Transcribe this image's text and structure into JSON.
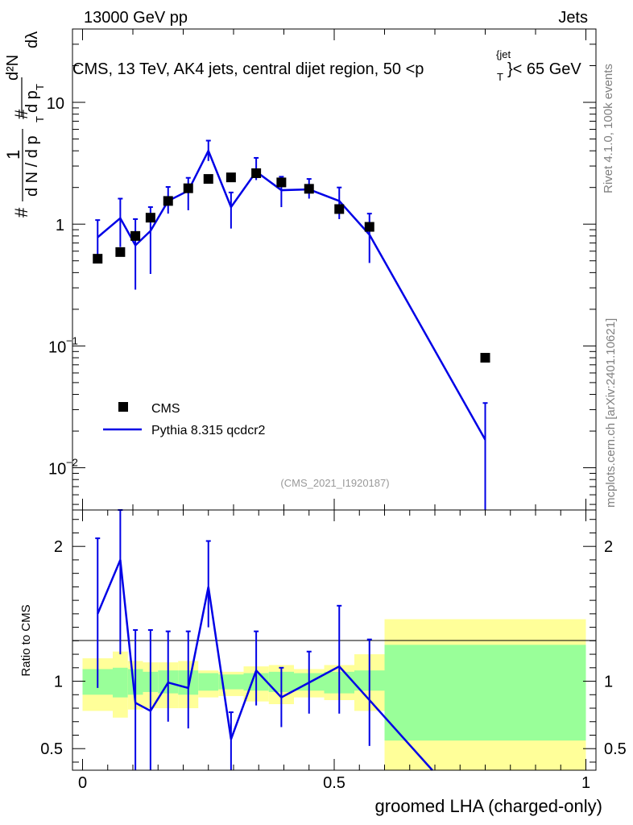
{
  "header": {
    "left": "13000 GeV pp",
    "right": "Jets"
  },
  "side_labels": {
    "rivet": "Rivet 4.1.0,  100k events",
    "mcplots": "mcplots.cern.ch [arXiv:2401.10621]"
  },
  "colors": {
    "mc": "#0000e6",
    "data": "#000000",
    "band_inner": "#99ff99",
    "band_outer": "#ffff99"
  },
  "chart_data": [
    {
      "type": "scatter",
      "panel": "main",
      "title": "CMS, 13 TeV, AK4 jets, central dijet region, 50 <p_T^{jet}< 65 GeV",
      "title_parts": {
        "main": "CMS, 13 TeV, AK4 jets, central dijet region, 50 <p",
        "sup": "{jet",
        "sub": "T",
        "tail": "}< 65 GeV"
      },
      "ylabel_parts": {
        "hash": "#",
        "one": "1",
        "den": "d N / d p",
        "den_sub": "T",
        "num": "d²N",
        "num_den": "d p",
        "num_den_sub": "T",
        "dlambda": "dλ"
      },
      "yscale": "log",
      "xlim": [
        -0.02,
        1.02
      ],
      "ylim": [
        0.0045,
        40
      ],
      "yticks": [
        {
          "value": 10,
          "label": "10",
          "exp": ""
        },
        {
          "value": 1,
          "label": "1",
          "exp": ""
        },
        {
          "value": 0.1,
          "label": "10",
          "exp": "−1"
        },
        {
          "value": 0.01,
          "label": "10",
          "exp": "−2"
        }
      ],
      "watermark": "(CMS_2021_I1920187)",
      "legend": [
        {
          "name": "CMS",
          "marker": "square"
        },
        {
          "name": "Pythia 8.315 qcdcr2",
          "marker": "line"
        }
      ],
      "series": [
        {
          "name": "CMS",
          "x": [
            0.03,
            0.075,
            0.105,
            0.135,
            0.17,
            0.21,
            0.25,
            0.295,
            0.345,
            0.395,
            0.45,
            0.51,
            0.57,
            0.8
          ],
          "y": [
            0.52,
            0.59,
            0.8,
            1.13,
            1.55,
            1.97,
            2.35,
            2.42,
            2.62,
            2.2,
            1.95,
            1.33,
            0.95,
            0.08
          ]
        },
        {
          "name": "Pythia 8.315 qcdcr2",
          "x": [
            0.03,
            0.075,
            0.105,
            0.135,
            0.17,
            0.21,
            0.25,
            0.295,
            0.345,
            0.395,
            0.45,
            0.51,
            0.57,
            0.8
          ],
          "y": [
            0.78,
            1.12,
            0.67,
            0.88,
            1.55,
            1.88,
            4.0,
            1.38,
            2.7,
            1.9,
            1.93,
            1.55,
            0.82,
            0.017
          ],
          "yerr_low": [
            0.48,
            0.65,
            0.29,
            0.39,
            1.22,
            1.3,
            3.3,
            0.92,
            2.3,
            1.38,
            1.62,
            1.1,
            0.48,
            0.003
          ],
          "yerr_high": [
            1.08,
            1.62,
            1.1,
            1.38,
            2.02,
            2.4,
            4.85,
            1.82,
            3.5,
            2.45,
            2.35,
            2.0,
            1.22,
            0.034
          ]
        }
      ]
    },
    {
      "type": "line",
      "panel": "ratio",
      "ylabel": "Ratio to CMS",
      "xlabel": "groomed LHA (charged-only)",
      "xlim": [
        -0.02,
        1.02
      ],
      "ylim": [
        0.34,
        2.27
      ],
      "xticks": [
        {
          "value": 0,
          "label": "0"
        },
        {
          "value": 0.5,
          "label": "0.5"
        },
        {
          "value": 1,
          "label": "1"
        }
      ],
      "yticks": [
        {
          "value": 0.5,
          "label": "0.5"
        },
        {
          "value": 1,
          "label": "1"
        },
        {
          "value": 2,
          "label": "2"
        }
      ],
      "bins": [
        0,
        0.06,
        0.09,
        0.12,
        0.15,
        0.19,
        0.23,
        0.27,
        0.32,
        0.37,
        0.42,
        0.48,
        0.54,
        0.6,
        1.0
      ],
      "band_inner": {
        "low": [
          0.9,
          0.88,
          0.9,
          0.92,
          0.91,
          0.9,
          0.93,
          0.94,
          0.93,
          0.92,
          0.93,
          0.91,
          0.93,
          0.56
        ],
        "high": [
          1.09,
          1.1,
          1.09,
          1.07,
          1.08,
          1.08,
          1.06,
          1.05,
          1.06,
          1.07,
          1.06,
          1.07,
          1.08,
          1.27
        ]
      },
      "band_outer": {
        "low": [
          0.78,
          0.73,
          0.79,
          0.8,
          0.8,
          0.8,
          0.88,
          0.89,
          0.85,
          0.83,
          0.88,
          0.86,
          0.78,
          0.34
        ],
        "high": [
          1.17,
          1.22,
          1.15,
          1.14,
          1.14,
          1.15,
          1.08,
          1.07,
          1.11,
          1.12,
          1.09,
          1.12,
          1.2,
          1.46
        ]
      },
      "series": [
        {
          "name": "Pythia 8.315 qcdcr2 / CMS",
          "x": [
            0.03,
            0.075,
            0.105,
            0.135,
            0.17,
            0.21,
            0.25,
            0.295,
            0.345,
            0.395,
            0.45,
            0.51,
            0.57,
            0.695
          ],
          "y": [
            1.5,
            1.9,
            0.84,
            0.78,
            0.99,
            0.95,
            1.7,
            0.57,
            1.08,
            0.88,
            0.99,
            1.11,
            0.86,
            0.34
          ],
          "yerr_low": [
            0.95,
            1.2,
            0.34,
            0.34,
            0.7,
            0.65,
            1.4,
            0.34,
            0.82,
            0.66,
            0.76,
            0.76,
            0.52,
            null
          ],
          "yerr_high": [
            2.06,
            2.27,
            1.38,
            1.38,
            1.37,
            1.37,
            2.04,
            0.77,
            1.37,
            1.1,
            1.22,
            1.56,
            1.31,
            null
          ]
        }
      ]
    }
  ]
}
